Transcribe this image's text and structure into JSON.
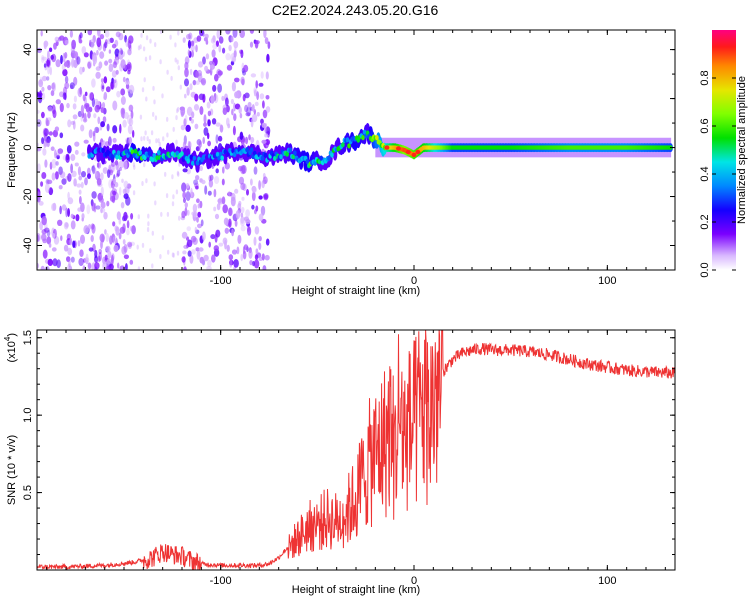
{
  "page": {
    "title": "C2E2.2024.243.05.20.G16"
  },
  "chart_data": [
    {
      "type": "heatmap",
      "name": "spectrogram",
      "xlabel": "Height of straight line (km)",
      "ylabel": "Frequency (Hz)",
      "xlim": [
        -195,
        135
      ],
      "ylim": [
        -50,
        48
      ],
      "x_ticks": [
        -100,
        0,
        100
      ],
      "x_tick_labels": [
        "-100",
        "0",
        "100"
      ],
      "y_ticks": [
        -40,
        -20,
        0,
        20,
        40
      ],
      "y_tick_labels": [
        "-40",
        "-20",
        "0",
        "20",
        "40"
      ],
      "colorbar": {
        "label": "Normalized spectral amplitude",
        "ticks": [
          0.0,
          0.2,
          0.4,
          0.6,
          0.8
        ],
        "tick_labels": [
          "0.0",
          "0.2",
          "0.4",
          "0.6",
          "0.8"
        ],
        "range": [
          0,
          1
        ],
        "colormap": "rainbow (violet to red)"
      },
      "noise_regions_x": [
        [
          -195,
          -145
        ],
        [
          -120,
          -75
        ]
      ],
      "center_line_points": [
        {
          "x": -168,
          "y": -2,
          "v": 0.3
        },
        {
          "x": -155,
          "y": -3,
          "v": 0.35
        },
        {
          "x": -145,
          "y": -2,
          "v": 0.5
        },
        {
          "x": -135,
          "y": -4,
          "v": 0.45
        },
        {
          "x": -125,
          "y": -2,
          "v": 0.4
        },
        {
          "x": -112,
          "y": -6,
          "v": 0.3
        },
        {
          "x": -100,
          "y": -3,
          "v": 0.35
        },
        {
          "x": -90,
          "y": -1,
          "v": 0.3
        },
        {
          "x": -75,
          "y": -4,
          "v": 0.35
        },
        {
          "x": -65,
          "y": -2,
          "v": 0.45
        },
        {
          "x": -55,
          "y": -6,
          "v": 0.5
        },
        {
          "x": -45,
          "y": -5,
          "v": 0.4
        },
        {
          "x": -38,
          "y": 1,
          "v": 0.45
        },
        {
          "x": -30,
          "y": 3,
          "v": 0.5
        },
        {
          "x": -24,
          "y": 6,
          "v": 0.45
        },
        {
          "x": -15,
          "y": 0,
          "v": 0.7
        },
        {
          "x": -10,
          "y": 0,
          "v": 0.8
        },
        {
          "x": -5,
          "y": -1,
          "v": 0.9
        },
        {
          "x": 0,
          "y": -3,
          "v": 0.85
        },
        {
          "x": 5,
          "y": 0,
          "v": 0.8
        },
        {
          "x": 20,
          "y": 0,
          "v": 0.55
        },
        {
          "x": 50,
          "y": 0,
          "v": 0.55
        },
        {
          "x": 80,
          "y": 0,
          "v": 0.6
        },
        {
          "x": 110,
          "y": 0,
          "v": 0.6
        },
        {
          "x": 133,
          "y": 0,
          "v": 0.55
        }
      ]
    },
    {
      "type": "line",
      "name": "snr",
      "xlabel": "Height of straight line (km)",
      "ylabel": "SNR (10 * v/v)",
      "multiplier_label": "(x10",
      "multiplier_exponent": "4",
      "xlim": [
        -195,
        135
      ],
      "ylim": [
        0,
        1.55
      ],
      "x_ticks": [
        -100,
        0,
        100
      ],
      "x_tick_labels": [
        "-100",
        "0",
        "100"
      ],
      "y_ticks": [
        0.5,
        1.0,
        1.5
      ],
      "y_tick_labels": [
        "0.5",
        "1.0",
        "1.5"
      ],
      "color": "#ee3333",
      "series": [
        {
          "x": [
            -195,
            -180,
            -160,
            -145,
            -135,
            -130,
            -125,
            -120,
            -115,
            -110,
            -100,
            -90,
            -80,
            -75,
            -70,
            -65,
            -62,
            -58,
            -55,
            -50,
            -45,
            -40,
            -35,
            -30,
            -25,
            -20,
            -15,
            -12,
            -10,
            -8,
            -5,
            0,
            5,
            8,
            10,
            15,
            20,
            25,
            30,
            35,
            40,
            50,
            60,
            70,
            80,
            90,
            100,
            110,
            120,
            135
          ],
          "y": [
            0.02,
            0.02,
            0.03,
            0.05,
            0.08,
            0.12,
            0.1,
            0.09,
            0.06,
            0.04,
            0.03,
            0.03,
            0.03,
            0.04,
            0.08,
            0.15,
            0.2,
            0.25,
            0.3,
            0.32,
            0.36,
            0.34,
            0.4,
            0.5,
            0.7,
            0.8,
            0.9,
            1.0,
            0.8,
            1.1,
            0.95,
            1.0,
            1.15,
            1.05,
            1.2,
            1.28,
            1.36,
            1.4,
            1.42,
            1.43,
            1.42,
            1.42,
            1.41,
            1.39,
            1.36,
            1.33,
            1.31,
            1.29,
            1.28,
            1.27
          ]
        }
      ]
    }
  ]
}
